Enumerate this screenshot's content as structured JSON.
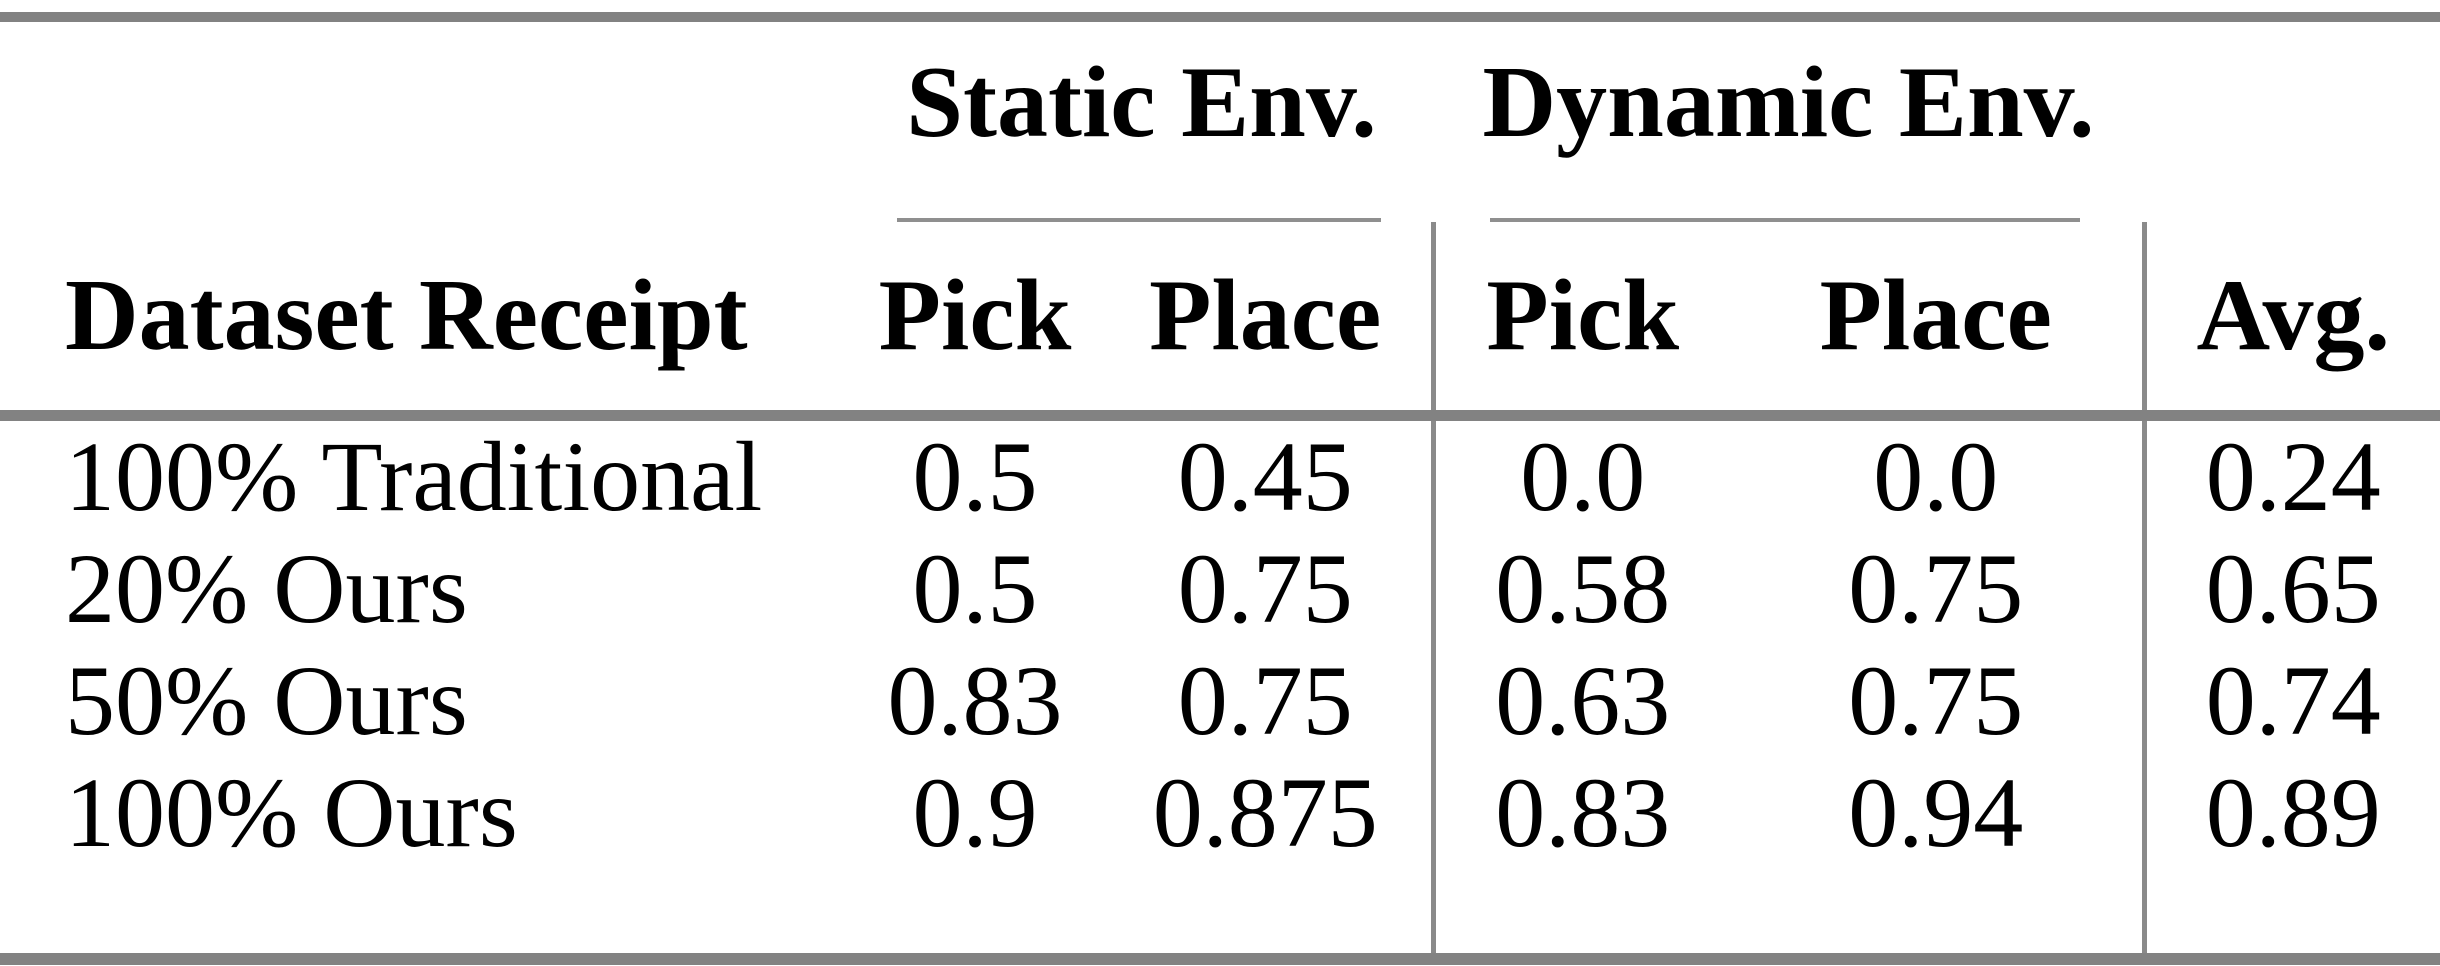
{
  "page": {
    "background": "#ffffff",
    "text_color": "#000000"
  },
  "rules": {
    "thick_rule_color": "#828282",
    "thin_rule_color": "#8f8f8f",
    "separator_color": "#8a8a8a"
  },
  "table": {
    "group_headers": {
      "static": "Static Env.",
      "dynamic": "Dynamic Env."
    },
    "column_headers": {
      "label": "Dataset Receipt",
      "static_pick": "Pick",
      "static_place": "Place",
      "dynamic_pick": "Pick",
      "dynamic_place": "Place",
      "avg": "Avg."
    },
    "rows": [
      {
        "label": "100% Traditional",
        "static_pick": "0.5",
        "static_place": "0.45",
        "dynamic_pick": "0.0",
        "dynamic_place": "0.0",
        "avg": "0.24"
      },
      {
        "label": "20% Ours",
        "static_pick": "0.5",
        "static_place": "0.75",
        "dynamic_pick": "0.58",
        "dynamic_place": "0.75",
        "avg": "0.65"
      },
      {
        "label": "50% Ours",
        "static_pick": "0.83",
        "static_place": "0.75",
        "dynamic_pick": "0.63",
        "dynamic_place": "0.75",
        "avg": "0.74"
      },
      {
        "label": "100% Ours",
        "static_pick": "0.9",
        "static_place": "0.875",
        "dynamic_pick": "0.83",
        "dynamic_place": "0.94",
        "avg": "0.89"
      }
    ]
  }
}
